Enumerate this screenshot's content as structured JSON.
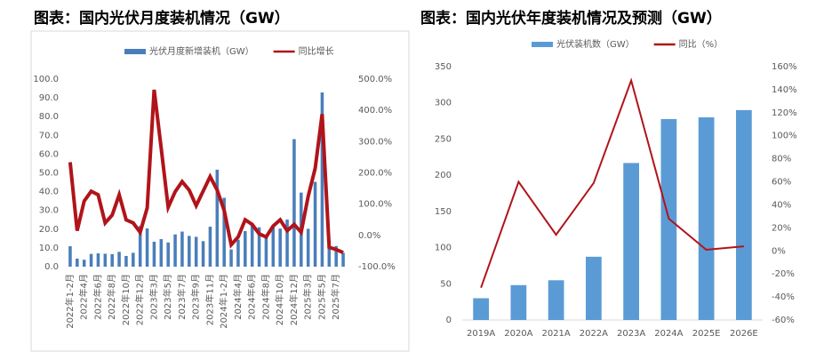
{
  "chart_data": [
    {
      "type": "combo",
      "title": "图表：国内光伏月度装机情况（GW）",
      "categories": [
        "2022年1-2月",
        null,
        "2022年4月",
        null,
        "2022年6月",
        null,
        "2022年8月",
        null,
        "2022年10月",
        null,
        "2022年12月",
        null,
        "2023年3月",
        null,
        "2023年5月",
        null,
        "2023年7月",
        null,
        "2023年9月",
        null,
        "2023年11月",
        null,
        "2024年1-2月",
        null,
        "2024年4月",
        null,
        "2024年6月",
        null,
        "2024年8月",
        null,
        "2024年10月",
        null,
        "2024年12月",
        null,
        "2025年3月",
        null,
        "2025年5月",
        null,
        "2025年7月",
        null
      ],
      "series": [
        {
          "name": "光伏月度新增装机（GW）",
          "type": "bar",
          "color": "#4a7ebb",
          "values": [
            10.9,
            4.3,
            3.7,
            6.8,
            7.1,
            6.9,
            6.7,
            7.9,
            5.7,
            7.4,
            21.7,
            20.4,
            13.3,
            14.7,
            12.9,
            17.2,
            18.7,
            16.4,
            15.9,
            13.6,
            21.3,
            51.7,
            36.7,
            9.2,
            14.4,
            19.0,
            23.2,
            21.0,
            16.6,
            20.9,
            20.3,
            25.1,
            68.0,
            39.5,
            20.2,
            45.2,
            92.9,
            14.4,
            11.0,
            7.4
          ]
        },
        {
          "name": "同比增长",
          "type": "line",
          "axis": "y2",
          "color": "#b0141a",
          "values": [
            234,
            15,
            110,
            141,
            130,
            40,
            65,
            130,
            50,
            40,
            10,
            88,
            466,
            280,
            90,
            140,
            172,
            145,
            95,
            142,
            188,
            145,
            80,
            -30,
            -5,
            50,
            35,
            5,
            -5,
            30,
            50,
            15,
            35,
            10,
            125,
            215,
            388,
            -38,
            -45,
            -55
          ]
        }
      ],
      "ylim": [
        0,
        100
      ],
      "yticks": [
        {
          "value": 0,
          "label": "0.0"
        },
        {
          "value": 10,
          "label": "10.0"
        },
        {
          "value": 20,
          "label": "20.0"
        },
        {
          "value": 30,
          "label": "30.0"
        },
        {
          "value": 40,
          "label": "40.0"
        },
        {
          "value": 50,
          "label": "50.0"
        },
        {
          "value": 60,
          "label": "60.0"
        },
        {
          "value": 70,
          "label": "70.0"
        },
        {
          "value": 80,
          "label": "80.0"
        },
        {
          "value": 90,
          "label": "90.0"
        },
        {
          "value": 100,
          "label": "100.0"
        }
      ],
      "y2lim": [
        -100,
        500
      ],
      "y2ticks": [
        {
          "value": -100,
          "label": "-100.0%"
        },
        {
          "value": 0,
          "label": "0.0%"
        },
        {
          "value": 100,
          "label": "100.0%"
        },
        {
          "value": 200,
          "label": "200.0%"
        },
        {
          "value": 300,
          "label": "300.0%"
        },
        {
          "value": 400,
          "label": "400.0%"
        },
        {
          "value": 500,
          "label": "500.0%"
        }
      ],
      "legend": "top"
    },
    {
      "type": "combo",
      "title": "图表：国内光伏年度装机情况及预测（GW）",
      "categories": [
        "2019A",
        "2020A",
        "2021A",
        "2022A",
        "2023A",
        "2024A",
        "2025E",
        "2026E"
      ],
      "series": [
        {
          "name": "光伏装机数（GW）",
          "type": "bar",
          "color": "#5b9bd5",
          "values": [
            30.1,
            48.2,
            54.9,
            87.4,
            216.9,
            277.6,
            280,
            290
          ]
        },
        {
          "name": "同比（%）",
          "type": "line",
          "axis": "y2",
          "color": "#b0141a",
          "values": [
            -32,
            60,
            14,
            59,
            148,
            28,
            1,
            4
          ]
        }
      ],
      "ylim": [
        0,
        350
      ],
      "yticks": [
        0,
        50,
        100,
        150,
        200,
        250,
        300,
        350
      ],
      "y2lim": [
        -60,
        160
      ],
      "y2ticks": [
        {
          "value": -60,
          "label": "-60%"
        },
        {
          "value": -40,
          "label": "-40%"
        },
        {
          "value": -20,
          "label": "-20%"
        },
        {
          "value": 0,
          "label": "0%"
        },
        {
          "value": 20,
          "label": "20%"
        },
        {
          "value": 40,
          "label": "40%"
        },
        {
          "value": 60,
          "label": "60%"
        },
        {
          "value": 80,
          "label": "80%"
        },
        {
          "value": 100,
          "label": "100%"
        },
        {
          "value": 120,
          "label": "120%"
        },
        {
          "value": 140,
          "label": "140%"
        },
        {
          "value": 160,
          "label": "160%"
        }
      ],
      "legend": "top"
    }
  ]
}
